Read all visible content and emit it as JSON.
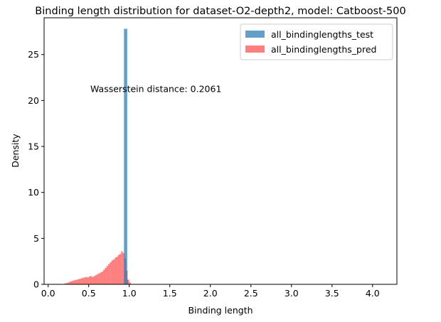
{
  "chart_data": {
    "type": "histogram",
    "title": "Binding length distribution for dataset-O2-depth2, model: Catboost-500",
    "xlabel": "Binding length",
    "ylabel": "Density",
    "xlim": [
      -0.05,
      4.3
    ],
    "ylim": [
      0,
      29
    ],
    "xticks": [
      "0.0",
      "0.5",
      "1.0",
      "1.5",
      "2.0",
      "2.5",
      "3.0",
      "3.5",
      "4.0"
    ],
    "yticks": [
      "0",
      "5",
      "10",
      "15",
      "20",
      "25"
    ],
    "annotation": {
      "text": "Wasserstein distance: 0.2061",
      "x": 0.52,
      "y": 20.9
    },
    "legend": {
      "placement": "upper right"
    },
    "series": [
      {
        "name": "all_bindinglengths_test",
        "color": "#1f77b4",
        "alpha": 0.7,
        "bins": [
          [
            0.935,
            0.975,
            27.8
          ],
          [
            0.975,
            0.985,
            0.5
          ]
        ]
      },
      {
        "name": "all_bindinglengths_pred",
        "color": "#ff0000",
        "alpha": 0.5,
        "bin_start": 0.2,
        "bin_width": 0.02,
        "densities": [
          0.1,
          0.15,
          0.2,
          0.3,
          0.35,
          0.4,
          0.45,
          0.5,
          0.55,
          0.6,
          0.65,
          0.7,
          0.75,
          0.8,
          0.75,
          0.85,
          0.9,
          0.8,
          0.9,
          1.0,
          1.1,
          1.2,
          1.3,
          1.4,
          1.6,
          1.8,
          2.0,
          2.2,
          2.4,
          2.6,
          2.7,
          2.9,
          3.0,
          3.2,
          3.3,
          3.6,
          3.4,
          2.8,
          1.5,
          0.5,
          0.2,
          0.05
        ]
      }
    ]
  }
}
